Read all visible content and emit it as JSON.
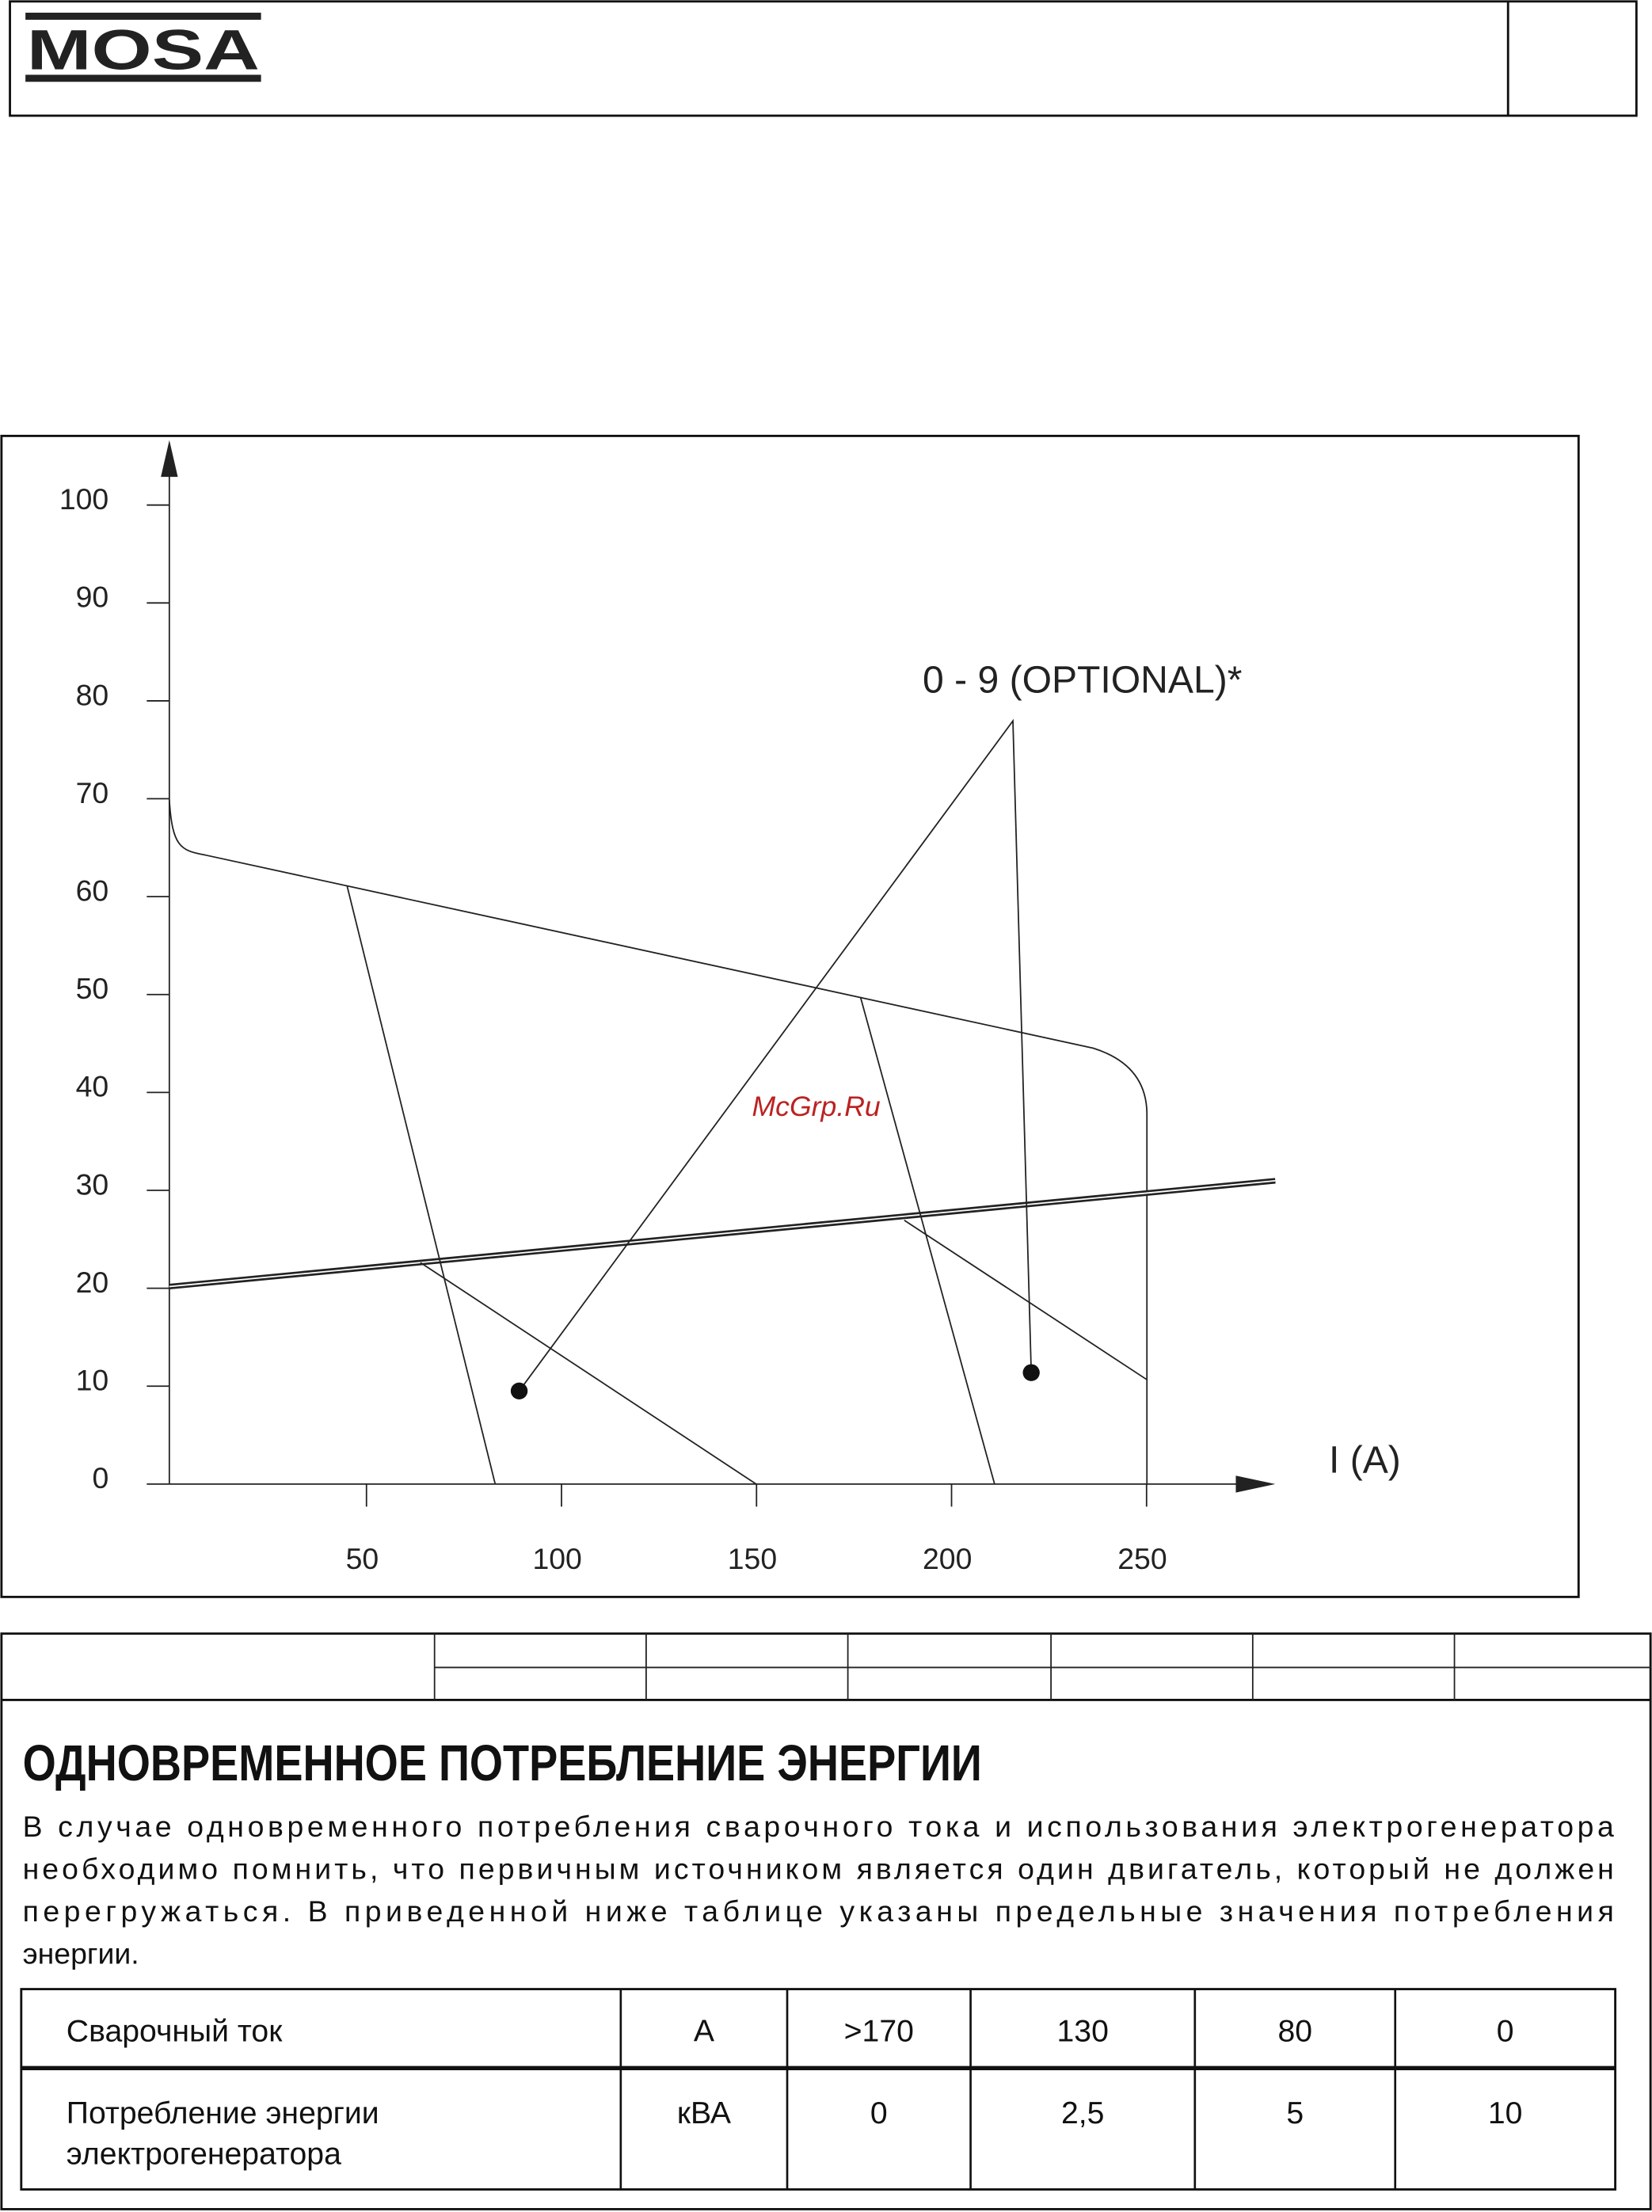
{
  "header": {
    "logo": "MOSA"
  },
  "chart": {
    "yticks": [
      0,
      10,
      20,
      30,
      40,
      50,
      60,
      70,
      80,
      90,
      100
    ],
    "xticks": [
      50,
      100,
      150,
      200,
      250
    ],
    "x_axis_label": "I (A)",
    "annotation": "0 - 9 (OPTIONAL)*",
    "watermark": "McGrp.Ru"
  },
  "section": {
    "title": "ОДНОВРЕМЕННОЕ ПОТРЕБЛЕНИЕ ЭНЕРГИИ",
    "paragraph": [
      "В случае одновременного потребления сварочного тока и использования электрогенератора",
      "необходимо помнить, что первичным источником является один двигатель, который не должен",
      "перегружаться. В приведенной ниже таблице указаны предельные значения потребления",
      "энергии."
    ]
  },
  "table": {
    "rows": [
      [
        "Сварочный ток",
        "A",
        ">170",
        "130",
        "80",
        "0"
      ],
      [
        [
          "Потребление энергии",
          "электрогенератора"
        ],
        "кВА",
        "0",
        "2,5",
        "5",
        "10"
      ]
    ]
  }
}
